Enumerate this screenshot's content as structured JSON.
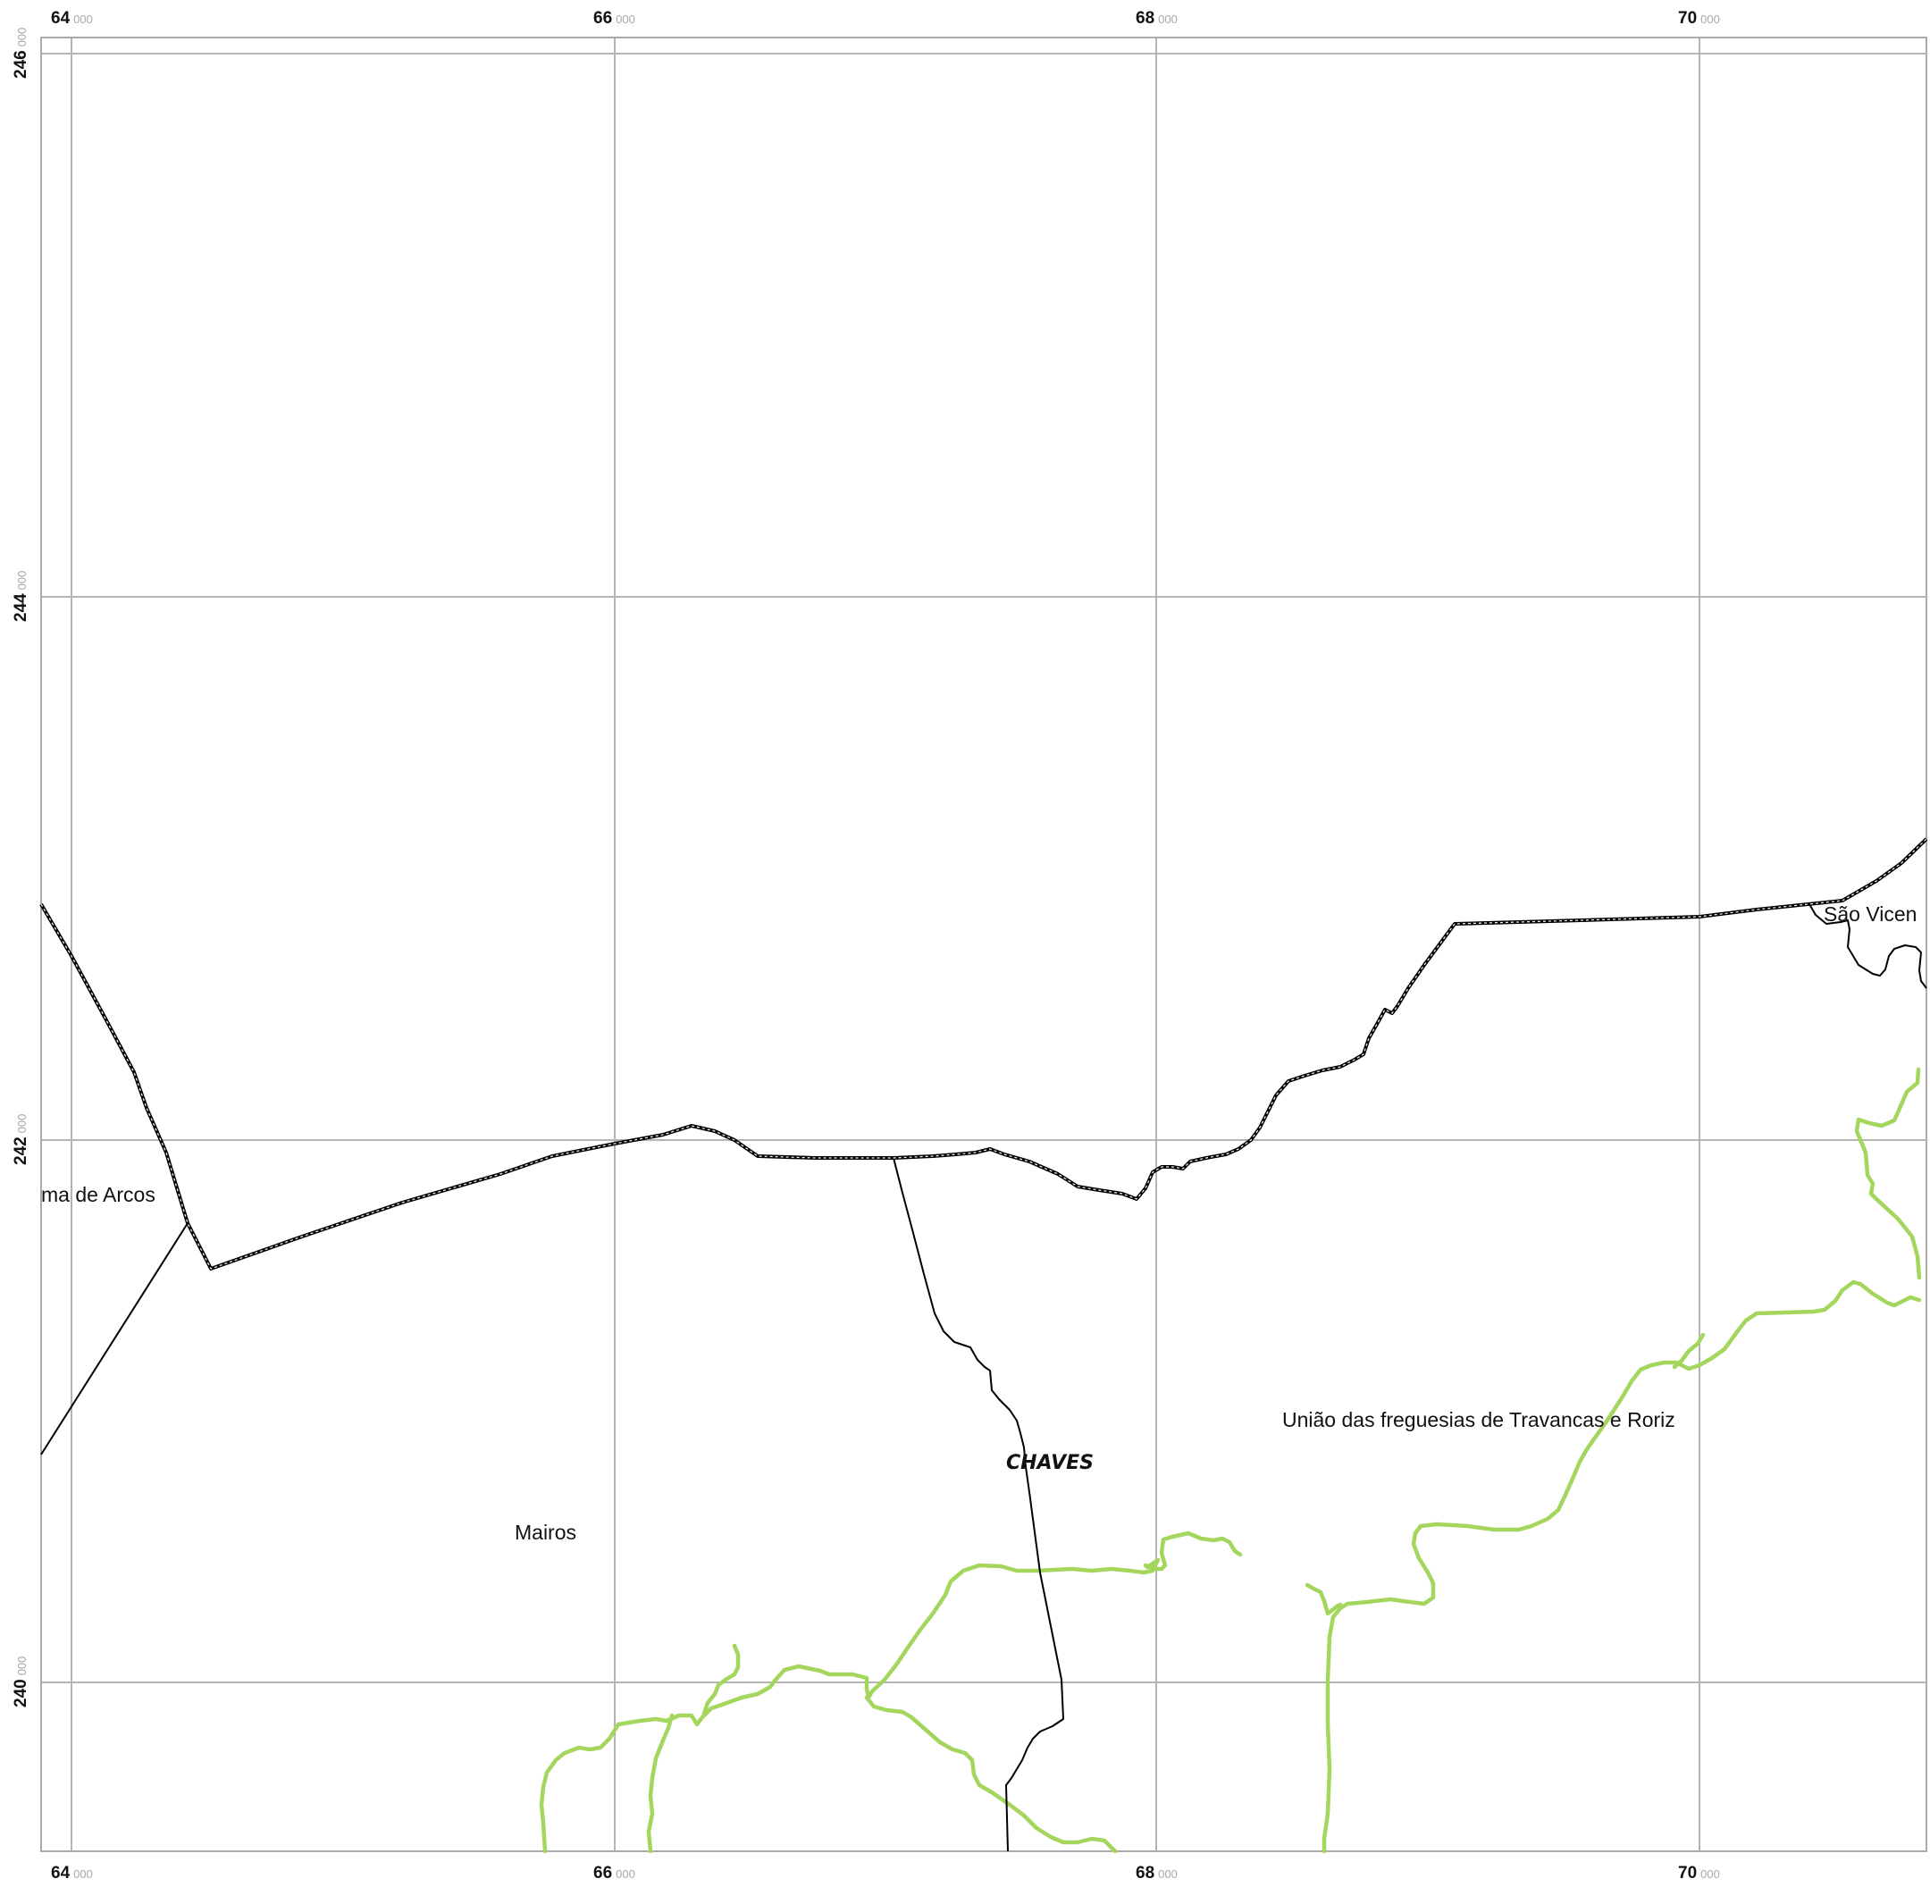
{
  "map": {
    "grid": {
      "x_ticks": [
        {
          "major": "64",
          "minor": "000"
        },
        {
          "major": "66",
          "minor": "000"
        },
        {
          "major": "68",
          "minor": "000"
        },
        {
          "major": "70",
          "minor": "000"
        }
      ],
      "y_ticks": [
        {
          "major": "246",
          "minor": "000"
        },
        {
          "major": "244",
          "minor": "000"
        },
        {
          "major": "242",
          "minor": "000"
        },
        {
          "major": "240",
          "minor": "000"
        }
      ]
    },
    "labels": {
      "parish_arcos": "ma de Arcos",
      "parish_mairos": "Mairos",
      "parish_travancas_roriz": "União das freguesias de Travancas e Roriz",
      "parish_sao_vicente": "São Vicen",
      "municipality": "CHAVES"
    },
    "colors": {
      "grid": "#b4b4b4",
      "river": "#a4d65e",
      "border": "#000000"
    }
  }
}
